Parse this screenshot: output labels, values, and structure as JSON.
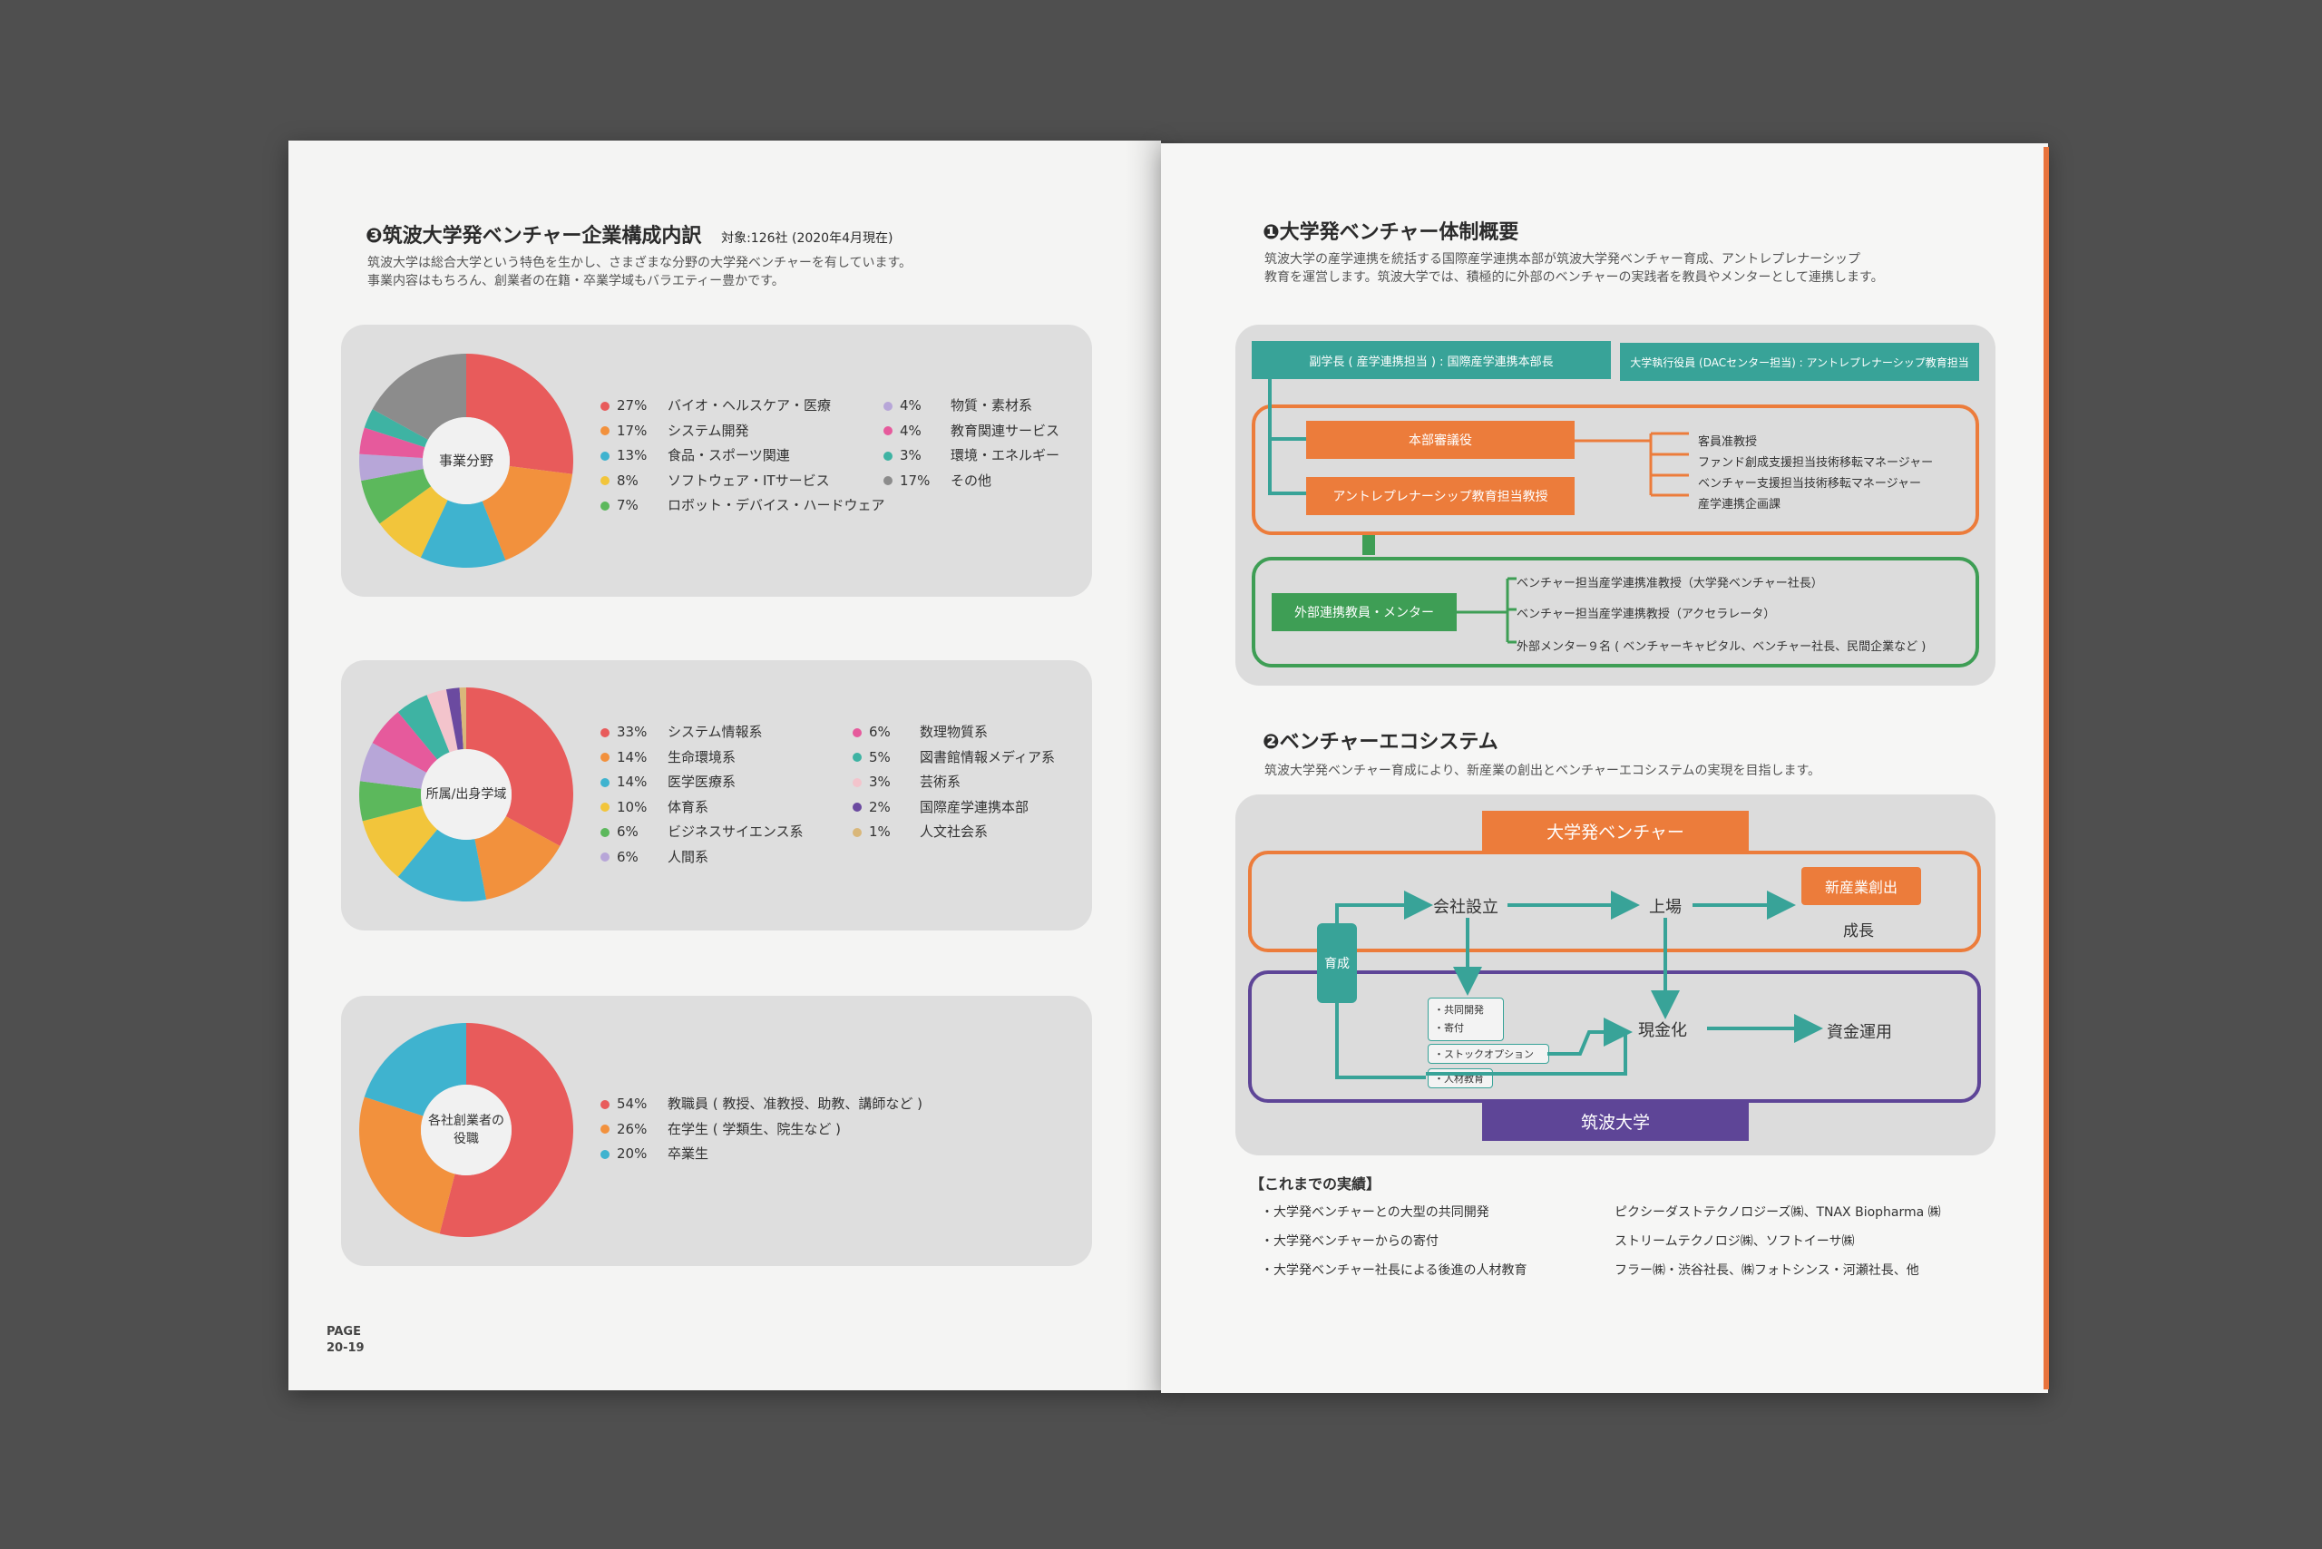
{
  "left": {
    "title": "❸筑波大学発ベンチャー企業構成内訳",
    "title_note": "対象:126社 (2020年4月現在)",
    "intro_1": "筑波大学は総合大学という特色を生かし、さまざまな分野の大学発ベンチャーを有しています。",
    "intro_2": "事業内容はもちろん、創業者の在籍・卒業学域もバラエティー豊かです。",
    "page_label": "PAGE",
    "page_number": "20-19"
  },
  "chart_data": [
    {
      "type": "pie",
      "center_label": "事業分野",
      "slices": [
        {
          "pct": "27%",
          "label": "バイオ・ヘルスケア・医療",
          "value": 27,
          "color": "#e85b5b"
        },
        {
          "pct": "17%",
          "label": "システム開発",
          "value": 17,
          "color": "#f2913d"
        },
        {
          "pct": "13%",
          "label": "食品・スポーツ関連",
          "value": 13,
          "color": "#3fb3cf"
        },
        {
          "pct": "8%",
          "label": "ソフトウェア・ITサービス",
          "value": 8,
          "color": "#f2c53b"
        },
        {
          "pct": "7%",
          "label": "ロボット・デバイス・ハードウェア",
          "value": 7,
          "color": "#5cb85c"
        },
        {
          "pct": "4%",
          "label": "物質・素材系",
          "value": 4,
          "color": "#b7a6d8"
        },
        {
          "pct": "4%",
          "label": "教育関連サービス",
          "value": 4,
          "color": "#e65a9c"
        },
        {
          "pct": "3%",
          "label": "環境・エネルギー",
          "value": 3,
          "color": "#3eb3a3"
        },
        {
          "pct": "17%",
          "label": "その他",
          "value": 17,
          "color": "#8c8c8c"
        }
      ]
    },
    {
      "type": "pie",
      "center_label": "所属/出身学域",
      "slices": [
        {
          "pct": "33%",
          "label": "システム情報系",
          "value": 33,
          "color": "#e85b5b"
        },
        {
          "pct": "14%",
          "label": "生命環境系",
          "value": 14,
          "color": "#f2913d"
        },
        {
          "pct": "14%",
          "label": "医学医療系",
          "value": 14,
          "color": "#3fb3cf"
        },
        {
          "pct": "10%",
          "label": "体育系",
          "value": 10,
          "color": "#f2c53b"
        },
        {
          "pct": "6%",
          "label": "ビジネスサイエンス系",
          "value": 6,
          "color": "#5cb85c"
        },
        {
          "pct": "6%",
          "label": "人間系",
          "value": 6,
          "color": "#b7a6d8"
        },
        {
          "pct": "6%",
          "label": "数理物質系",
          "value": 6,
          "color": "#e65a9c"
        },
        {
          "pct": "5%",
          "label": "図書館情報メディア系",
          "value": 5,
          "color": "#3eb3a3"
        },
        {
          "pct": "3%",
          "label": "芸術系",
          "value": 3,
          "color": "#f3c4cc"
        },
        {
          "pct": "2%",
          "label": "国際産学連携本部",
          "value": 2,
          "color": "#6b4aa0"
        },
        {
          "pct": "1%",
          "label": "人文社会系",
          "value": 1,
          "color": "#d9b77a"
        }
      ]
    },
    {
      "type": "pie",
      "center_label_1": "各社創業者の",
      "center_label_2": "役職",
      "slices": [
        {
          "pct": "54%",
          "label": "教職員 ( 教授、准教授、助教、講師など )",
          "value": 54,
          "color": "#e85b5b"
        },
        {
          "pct": "26%",
          "label": "在学生 ( 学類生、院生など )",
          "value": 26,
          "color": "#f2913d"
        },
        {
          "pct": "20%",
          "label": "卒業生",
          "value": 20,
          "color": "#3fb3cf"
        }
      ]
    }
  ],
  "right": {
    "sec1_title": "❶大学発ベンチャー体制概要",
    "sec1_intro_1": "筑波大学の産学連携を統括する国際産学連携本部が筑波大学発ベンチャー育成、アントレプレナーシップ",
    "sec1_intro_2": "教育を運営します。筑波大学では、積極的に外部のベンチャーの実践者を教員やメンターとして連携します。",
    "org": {
      "vp": "副学長 ( 産学連携担当 ) : 国際産学連携本部長",
      "exec": "大学執行役員 (DACセンター担当) : アントレプレナーシップ教育担当",
      "council": "本部審議役",
      "entre_prof": "アントレプレナーシップ教育担当教授",
      "staff_1": "客員准教授",
      "staff_2": "ファンド創成支援担当技術移転マネージャー",
      "staff_3": "ベンチャー支援担当技術移転マネージャー",
      "staff_4": "産学連携企画課",
      "external": "外部連携教員・メンター",
      "ext_1": "ベンチャー担当産学連携准教授（大学発ベンチャー社長）",
      "ext_2": "ベンチャー担当産学連携教授（アクセラレータ）",
      "ext_3": "外部メンター９名 ( ベンチャーキャピタル、ベンチャー社長、民間企業など )"
    },
    "sec2_title": "❷ベンチャーエコシステム",
    "sec2_intro": "筑波大学発ベンチャー育成により、新産業の創出とベンチャーエコシステムの実現を目指します。",
    "eco": {
      "venture": "大学発ベンチャー",
      "university": "筑波大学",
      "nurture": "育成",
      "founding": "会社設立",
      "listing": "上場",
      "new_industry": "新産業創出",
      "growth": "成長",
      "items_1": "・共同開発",
      "items_2": "・寄付",
      "stock": "・ストックオプション",
      "hr": "・人材教育",
      "cash": "現金化",
      "fund": "資金運用"
    },
    "results_title": "【これまでの実績】",
    "results": [
      {
        "left": "・大学発ベンチャーとの大型の共同開発",
        "right": "ピクシーダストテクノロジーズ㈱、TNAX Biopharma ㈱"
      },
      {
        "left": "・大学発ベンチャーからの寄付",
        "right": "ストリームテクノロジ㈱、ソフトイーサ㈱"
      },
      {
        "left": "・大学発ベンチャー社長による後進の人材教育",
        "right": "フラー㈱・渋谷社長、㈱フォトシンス・河瀬社長、他"
      }
    ]
  }
}
